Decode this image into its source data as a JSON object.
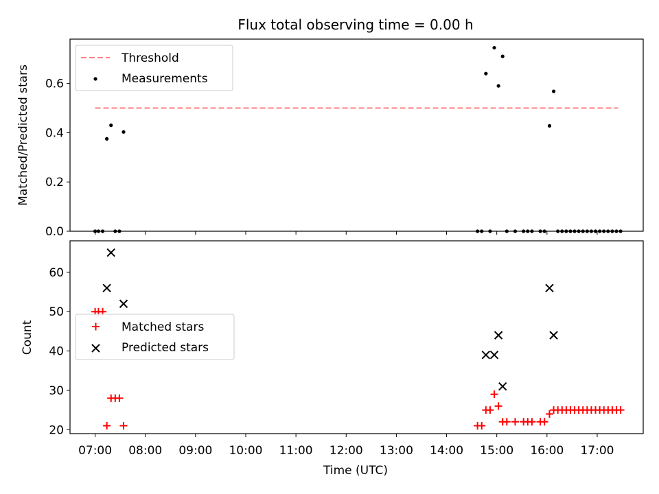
{
  "chart_data": [
    {
      "type": "scatter",
      "title": "Flux total observing time = 0.00 h",
      "xlabel": "",
      "ylabel": "Matched/Predicted stars",
      "xlim": [
        "06:30",
        "17:55"
      ],
      "ylim": [
        0,
        0.78
      ],
      "yticks": [
        "0.0",
        "0.2",
        "0.4",
        "0.6"
      ],
      "ytick_values": [
        0,
        0.2,
        0.4,
        0.6
      ],
      "legend": {
        "placement": "top-left",
        "entries": [
          "Threshold",
          "Measurements"
        ]
      },
      "threshold": {
        "name": "Threshold",
        "value": 0.5,
        "x_start": "07:00",
        "x_end": "17:25",
        "color": "#ff7f7f",
        "style": "dashed"
      },
      "series": [
        {
          "name": "Measurements",
          "color": "#000000",
          "marker": "dot",
          "points": [
            [
              "07:00",
              0
            ],
            [
              "07:04",
              0
            ],
            [
              "07:09",
              0
            ],
            [
              "07:14",
              0.375
            ],
            [
              "07:19",
              0.43
            ],
            [
              "07:24",
              0
            ],
            [
              "07:29",
              0
            ],
            [
              "07:34",
              0.403
            ],
            [
              "14:37",
              0
            ],
            [
              "14:42",
              0
            ],
            [
              "14:47",
              0.64
            ],
            [
              "14:52",
              0
            ],
            [
              "14:57",
              0.745
            ],
            [
              "15:02",
              0.59
            ],
            [
              "15:07",
              0.71
            ],
            [
              "15:12",
              0
            ],
            [
              "15:22",
              0
            ],
            [
              "15:32",
              0
            ],
            [
              "15:37",
              0
            ],
            [
              "15:42",
              0
            ],
            [
              "15:52",
              0
            ],
            [
              "15:57",
              0
            ],
            [
              "16:03",
              0.428
            ],
            [
              "16:08",
              0.568
            ],
            [
              "16:13",
              0
            ],
            [
              "16:18",
              0
            ],
            [
              "16:23",
              0
            ],
            [
              "16:28",
              0
            ],
            [
              "16:33",
              0
            ],
            [
              "16:38",
              0
            ],
            [
              "16:43",
              0
            ],
            [
              "16:48",
              0
            ],
            [
              "16:53",
              0
            ],
            [
              "16:58",
              0
            ],
            [
              "17:03",
              0
            ],
            [
              "17:08",
              0
            ],
            [
              "17:13",
              0
            ],
            [
              "17:18",
              0
            ],
            [
              "17:23",
              0
            ],
            [
              "17:28",
              0
            ]
          ]
        }
      ]
    },
    {
      "type": "scatter",
      "title": "",
      "xlabel": "Time (UTC)",
      "ylabel": "Count",
      "xlim": [
        "06:30",
        "17:55"
      ],
      "ylim": [
        19,
        68
      ],
      "xticks": [
        "07:00",
        "08:00",
        "09:00",
        "10:00",
        "11:00",
        "12:00",
        "13:00",
        "14:00",
        "15:00",
        "16:00",
        "17:00"
      ],
      "yticks": [
        "20",
        "30",
        "40",
        "50",
        "60"
      ],
      "ytick_values": [
        20,
        30,
        40,
        50,
        60
      ],
      "legend": {
        "placement": "center-left",
        "entries": [
          "Matched stars",
          "Predicted stars"
        ]
      },
      "series": [
        {
          "name": "Matched stars",
          "color": "#ff0000",
          "marker": "plus",
          "points": [
            [
              "07:00",
              50
            ],
            [
              "07:04",
              50
            ],
            [
              "07:09",
              50
            ],
            [
              "07:14",
              21
            ],
            [
              "07:19",
              28
            ],
            [
              "07:24",
              28
            ],
            [
              "07:29",
              28
            ],
            [
              "07:34",
              21
            ],
            [
              "14:37",
              21
            ],
            [
              "14:42",
              21
            ],
            [
              "14:47",
              25
            ],
            [
              "14:52",
              25
            ],
            [
              "14:57",
              29
            ],
            [
              "15:02",
              26
            ],
            [
              "15:07",
              22
            ],
            [
              "15:12",
              22
            ],
            [
              "15:22",
              22
            ],
            [
              "15:32",
              22
            ],
            [
              "15:37",
              22
            ],
            [
              "15:42",
              22
            ],
            [
              "15:52",
              22
            ],
            [
              "15:57",
              22
            ],
            [
              "16:03",
              24
            ],
            [
              "16:08",
              25
            ],
            [
              "16:13",
              25
            ],
            [
              "16:18",
              25
            ],
            [
              "16:23",
              25
            ],
            [
              "16:28",
              25
            ],
            [
              "16:33",
              25
            ],
            [
              "16:38",
              25
            ],
            [
              "16:43",
              25
            ],
            [
              "16:48",
              25
            ],
            [
              "16:53",
              25
            ],
            [
              "16:58",
              25
            ],
            [
              "17:03",
              25
            ],
            [
              "17:08",
              25
            ],
            [
              "17:13",
              25
            ],
            [
              "17:18",
              25
            ],
            [
              "17:23",
              25
            ],
            [
              "17:28",
              25
            ]
          ]
        },
        {
          "name": "Predicted stars",
          "color": "#000000",
          "marker": "x",
          "points": [
            [
              "07:14",
              56
            ],
            [
              "07:19",
              65
            ],
            [
              "07:34",
              52
            ],
            [
              "14:47",
              39
            ],
            [
              "14:57",
              39
            ],
            [
              "15:02",
              44
            ],
            [
              "15:07",
              31
            ],
            [
              "16:03",
              56
            ],
            [
              "16:08",
              44
            ]
          ]
        }
      ]
    }
  ]
}
